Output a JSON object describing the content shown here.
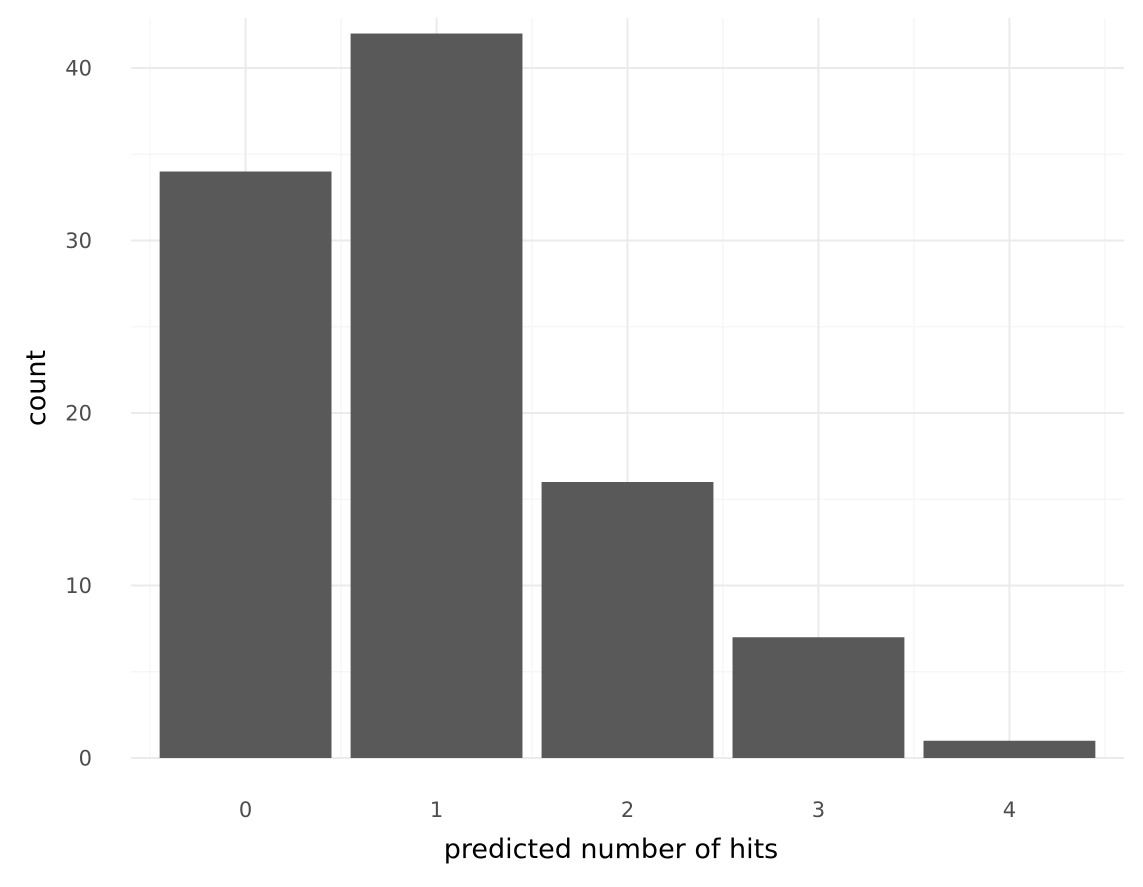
{
  "chart_data": {
    "type": "bar",
    "categories": [
      "0",
      "1",
      "2",
      "3",
      "4"
    ],
    "values": [
      34,
      42,
      16,
      7,
      1
    ],
    "title": "",
    "xlabel": "predicted number of hits",
    "ylabel": "count",
    "ylim": [
      0,
      42.9
    ],
    "y_ticks": [
      "0",
      "10",
      "20",
      "30",
      "40"
    ],
    "grid": true,
    "bar_color": "#595959",
    "grid_major_color": "#ebebeb",
    "grid_minor_color": "#f5f5f5",
    "tick_label_color": "#4d4d4d",
    "legend": "none"
  }
}
